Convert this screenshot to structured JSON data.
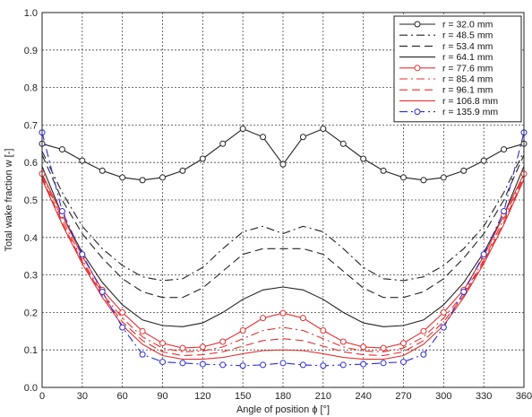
{
  "chart_data": {
    "type": "line",
    "title": "",
    "xlabel": "Angle of position ϕ [°]",
    "ylabel": "Total wake fraction w [-]",
    "xlim": [
      0,
      360
    ],
    "ylim": [
      0,
      1.0
    ],
    "xticks": [
      "0",
      "30",
      "60",
      "90",
      "120",
      "150",
      "180",
      "210",
      "240",
      "270",
      "300",
      "330",
      "360"
    ],
    "yticks": [
      "0.0",
      "0.1",
      "0.2",
      "0.3",
      "0.4",
      "0.5",
      "0.6",
      "0.7",
      "0.8",
      "0.9",
      "1.0"
    ],
    "grid": true,
    "legend_position": "top-right",
    "series": [
      {
        "name": "r = 32.0 mm",
        "color": "#222222",
        "dash": "solid",
        "marker": "circle",
        "x": [
          0,
          15,
          30,
          45,
          60,
          75,
          90,
          105,
          120,
          135,
          150,
          165,
          180,
          195,
          210,
          225,
          240,
          255,
          270,
          285,
          300,
          315,
          330,
          345,
          360
        ],
        "y": [
          0.65,
          0.635,
          0.605,
          0.578,
          0.56,
          0.553,
          0.56,
          0.578,
          0.61,
          0.65,
          0.69,
          0.668,
          0.595,
          0.668,
          0.69,
          0.65,
          0.61,
          0.578,
          0.56,
          0.553,
          0.56,
          0.578,
          0.605,
          0.635,
          0.65
        ]
      },
      {
        "name": "r = 48.5 mm",
        "color": "#222222",
        "dash": "dashdot",
        "marker": "none",
        "x": [
          0,
          15,
          30,
          45,
          60,
          75,
          90,
          105,
          120,
          135,
          150,
          165,
          180,
          195,
          210,
          225,
          240,
          255,
          270,
          285,
          300,
          315,
          330,
          345,
          360
        ],
        "y": [
          0.63,
          0.52,
          0.43,
          0.37,
          0.325,
          0.295,
          0.285,
          0.29,
          0.32,
          0.37,
          0.415,
          0.43,
          0.41,
          0.43,
          0.415,
          0.37,
          0.32,
          0.29,
          0.285,
          0.295,
          0.325,
          0.37,
          0.43,
          0.52,
          0.63
        ]
      },
      {
        "name": "r = 53.4 mm",
        "color": "#222222",
        "dash": "dashed",
        "marker": "none",
        "x": [
          0,
          15,
          30,
          45,
          60,
          75,
          90,
          105,
          120,
          135,
          150,
          165,
          180,
          195,
          210,
          225,
          240,
          255,
          270,
          285,
          300,
          315,
          330,
          345,
          360
        ],
        "y": [
          0.62,
          0.5,
          0.41,
          0.345,
          0.29,
          0.255,
          0.24,
          0.24,
          0.265,
          0.31,
          0.355,
          0.37,
          0.37,
          0.37,
          0.355,
          0.31,
          0.265,
          0.24,
          0.24,
          0.255,
          0.29,
          0.345,
          0.41,
          0.5,
          0.62
        ]
      },
      {
        "name": "r = 64.1 mm",
        "color": "#222222",
        "dash": "solid",
        "marker": "none",
        "x": [
          0,
          15,
          30,
          45,
          60,
          75,
          90,
          105,
          120,
          135,
          150,
          165,
          180,
          195,
          210,
          225,
          240,
          255,
          270,
          285,
          300,
          315,
          330,
          345,
          360
        ],
        "y": [
          0.59,
          0.46,
          0.36,
          0.28,
          0.22,
          0.18,
          0.165,
          0.162,
          0.172,
          0.2,
          0.235,
          0.26,
          0.268,
          0.26,
          0.235,
          0.2,
          0.172,
          0.162,
          0.165,
          0.18,
          0.22,
          0.28,
          0.36,
          0.46,
          0.59
        ]
      },
      {
        "name": "r = 77.6 mm",
        "color": "#e53030",
        "dash": "solid",
        "marker": "circle",
        "x": [
          0,
          15,
          30,
          45,
          60,
          75,
          90,
          105,
          120,
          135,
          150,
          165,
          180,
          195,
          210,
          225,
          240,
          255,
          270,
          285,
          300,
          315,
          330,
          345,
          360
        ],
        "y": [
          0.57,
          0.46,
          0.35,
          0.26,
          0.2,
          0.15,
          0.118,
          0.105,
          0.108,
          0.122,
          0.152,
          0.185,
          0.198,
          0.185,
          0.152,
          0.122,
          0.108,
          0.105,
          0.118,
          0.15,
          0.2,
          0.26,
          0.35,
          0.46,
          0.57
        ]
      },
      {
        "name": "r = 85.4 mm",
        "color": "#e53030",
        "dash": "dashdot",
        "marker": "none",
        "x": [
          0,
          15,
          30,
          45,
          60,
          75,
          90,
          105,
          120,
          135,
          150,
          165,
          180,
          195,
          210,
          225,
          240,
          255,
          270,
          285,
          300,
          315,
          330,
          345,
          360
        ],
        "y": [
          0.565,
          0.45,
          0.34,
          0.25,
          0.185,
          0.135,
          0.105,
          0.095,
          0.097,
          0.108,
          0.13,
          0.152,
          0.16,
          0.152,
          0.13,
          0.108,
          0.097,
          0.095,
          0.105,
          0.135,
          0.185,
          0.25,
          0.34,
          0.45,
          0.565
        ]
      },
      {
        "name": "r = 96.1 mm",
        "color": "#e53030",
        "dash": "dashed",
        "marker": "none",
        "x": [
          0,
          15,
          30,
          45,
          60,
          75,
          90,
          105,
          120,
          135,
          150,
          165,
          180,
          195,
          210,
          225,
          240,
          255,
          270,
          285,
          300,
          315,
          330,
          345,
          360
        ],
        "y": [
          0.56,
          0.44,
          0.335,
          0.245,
          0.175,
          0.125,
          0.095,
          0.085,
          0.087,
          0.095,
          0.11,
          0.125,
          0.13,
          0.125,
          0.11,
          0.095,
          0.087,
          0.085,
          0.095,
          0.125,
          0.175,
          0.245,
          0.335,
          0.44,
          0.56
        ]
      },
      {
        "name": "r = 106.8 mm",
        "color": "#e53030",
        "dash": "solid",
        "marker": "none",
        "x": [
          0,
          15,
          30,
          45,
          60,
          75,
          90,
          105,
          120,
          135,
          150,
          165,
          180,
          195,
          210,
          225,
          240,
          255,
          270,
          285,
          300,
          315,
          330,
          345,
          360
        ],
        "y": [
          0.555,
          0.435,
          0.33,
          0.24,
          0.165,
          0.115,
          0.085,
          0.075,
          0.075,
          0.08,
          0.09,
          0.098,
          0.1,
          0.098,
          0.09,
          0.08,
          0.075,
          0.075,
          0.085,
          0.115,
          0.165,
          0.24,
          0.33,
          0.435,
          0.555
        ]
      },
      {
        "name": "r = 135.9 mm",
        "color": "#2a2ad8",
        "dash": "dashdot",
        "marker": "circle",
        "x": [
          0,
          15,
          30,
          45,
          60,
          75,
          90,
          105,
          120,
          135,
          150,
          165,
          180,
          195,
          210,
          225,
          240,
          255,
          270,
          285,
          300,
          315,
          330,
          345,
          360
        ],
        "y": [
          0.68,
          0.47,
          0.355,
          0.255,
          0.16,
          0.088,
          0.068,
          0.065,
          0.062,
          0.06,
          0.058,
          0.06,
          0.065,
          0.06,
          0.058,
          0.06,
          0.062,
          0.065,
          0.068,
          0.088,
          0.16,
          0.255,
          0.355,
          0.47,
          0.68
        ]
      }
    ]
  }
}
